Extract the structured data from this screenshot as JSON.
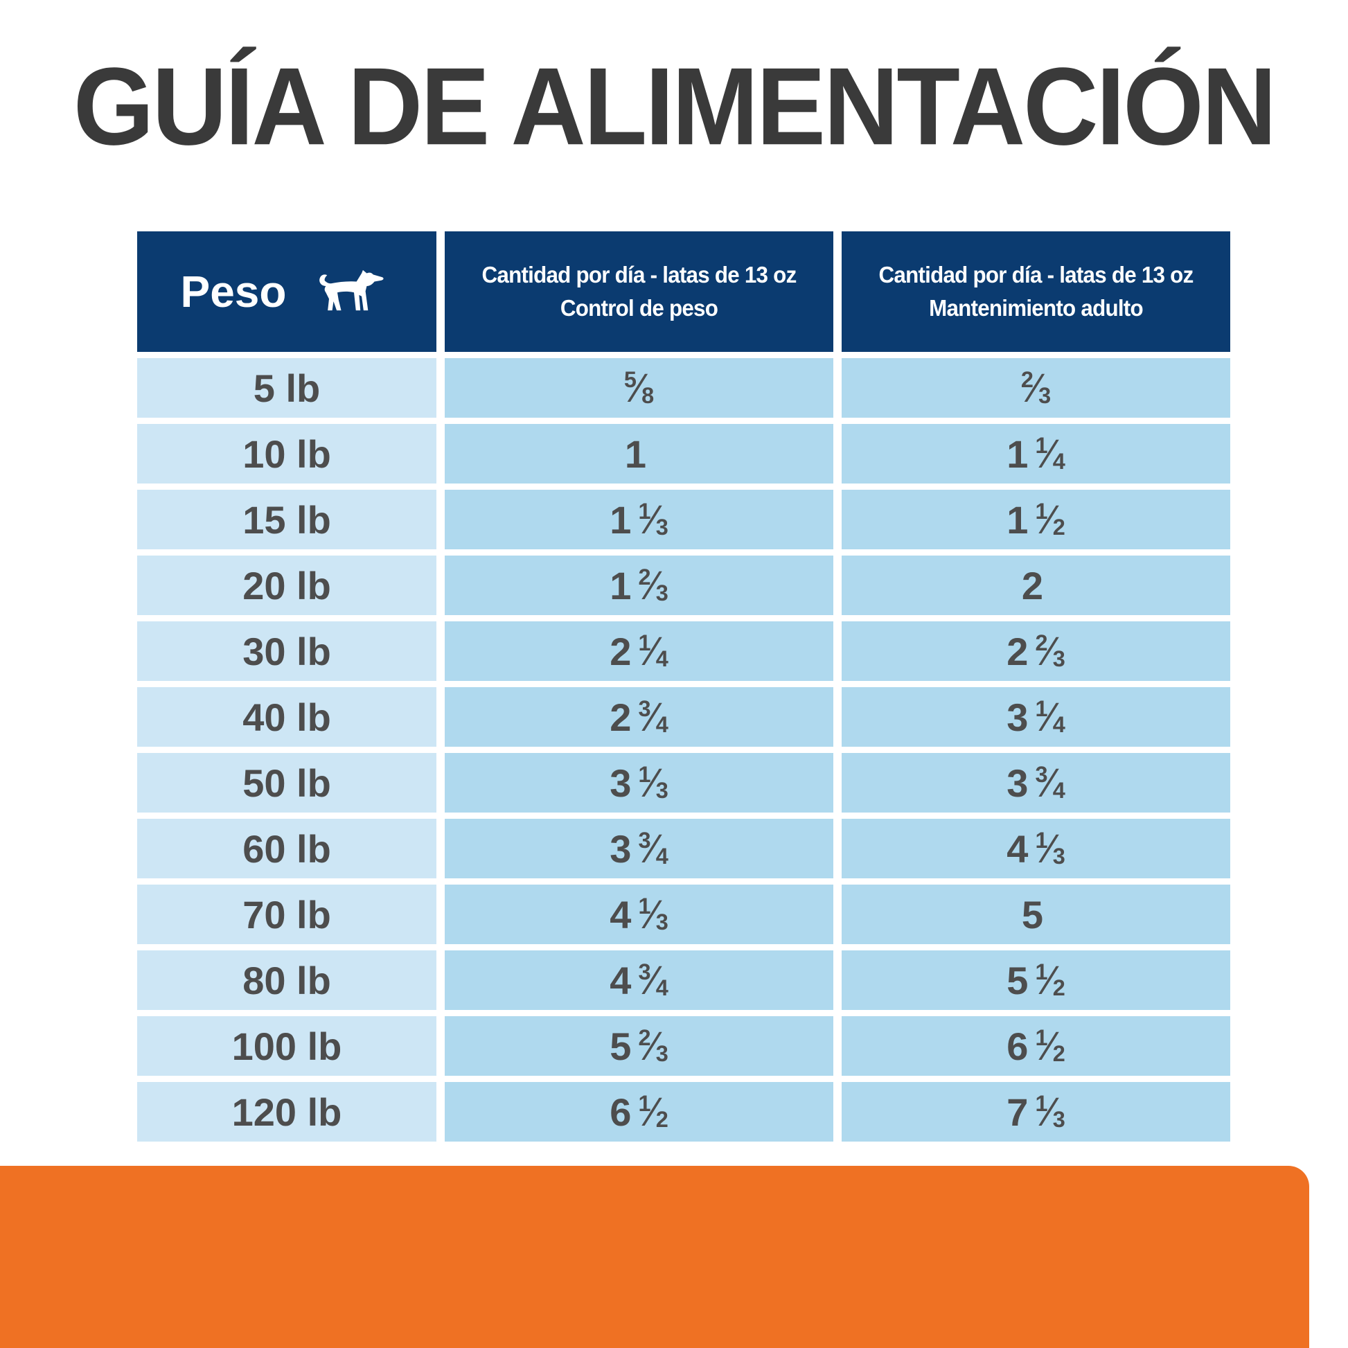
{
  "title": "GUÍA DE ALIMENTACIÓN",
  "colors": {
    "header_navy": "#0b3b70",
    "weight_column_blue": "#cde6f5",
    "value_column_blue": "#afd9ee",
    "orange_band": "#ef7123",
    "title_text": "#3a3a3a",
    "cell_text": "#4d4d4d",
    "header_text": "#ffffff"
  },
  "table": {
    "headers": {
      "weight_label": "Peso",
      "weight_icon": "dog-icon",
      "control_line1": "Cantidad por día - latas de 13 oz",
      "control_line2": "Control de peso",
      "maintenance_line1": "Cantidad por día - latas de 13 oz",
      "maintenance_line2": "Mantenimiento adulto"
    },
    "rows": [
      {
        "weight": "5 lb",
        "control": "5/8",
        "maintenance": "2/3"
      },
      {
        "weight": "10 lb",
        "control": "1",
        "maintenance": "1 1/4"
      },
      {
        "weight": "15 lb",
        "control": "1 1/3",
        "maintenance": "1 1/2"
      },
      {
        "weight": "20 lb",
        "control": "1 2/3",
        "maintenance": "2"
      },
      {
        "weight": "30 lb",
        "control": "2 1/4",
        "maintenance": "2 2/3"
      },
      {
        "weight": "40 lb",
        "control": "2 3/4",
        "maintenance": "3 1/4"
      },
      {
        "weight": "50 lb",
        "control": "3 1/3",
        "maintenance": "3 3/4"
      },
      {
        "weight": "60 lb",
        "control": "3 3/4",
        "maintenance": "4 1/3"
      },
      {
        "weight": "70 lb",
        "control": "4 1/3",
        "maintenance": "5"
      },
      {
        "weight": "80 lb",
        "control": "4 3/4",
        "maintenance": "5 1/2"
      },
      {
        "weight": "100 lb",
        "control": "5 2/3",
        "maintenance": "6 1/2"
      },
      {
        "weight": "120 lb",
        "control": "6 1/2",
        "maintenance": "7 1/3"
      }
    ]
  }
}
